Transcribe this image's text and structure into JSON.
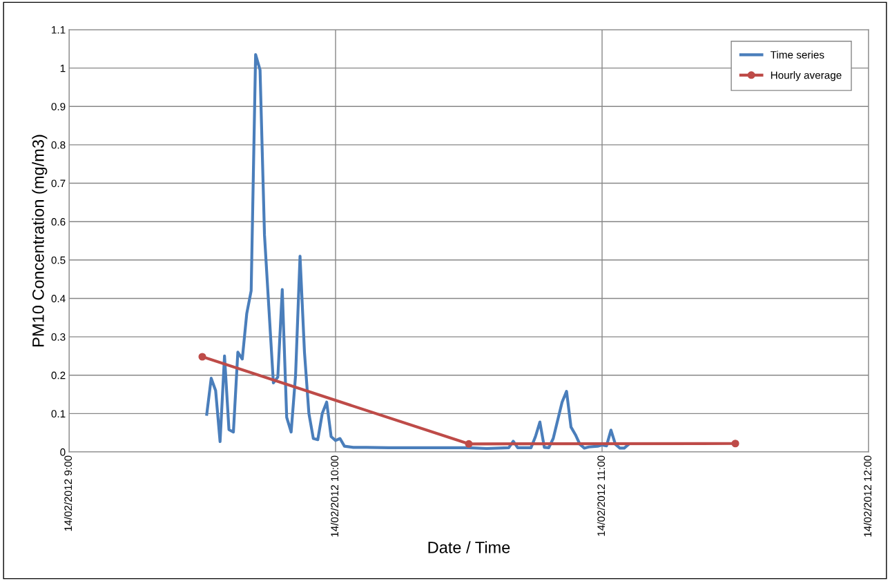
{
  "chart_data": {
    "type": "line",
    "xlabel": "Date / Time",
    "ylabel": "PM10 Concentration (mg/m3)",
    "xlim": [
      "2012-02-14T09:00",
      "2012-02-14T12:00"
    ],
    "xticks": [
      {
        "value": "2012-02-14T09:00",
        "label": "14/02/2012 9:00"
      },
      {
        "value": "2012-02-14T10:00",
        "label": "14/02/2012 10:00"
      },
      {
        "value": "2012-02-14T11:00",
        "label": "14/02/2012 11:00"
      },
      {
        "value": "2012-02-14T12:00",
        "label": "14/02/2012 12:00"
      }
    ],
    "ylim": [
      0,
      1.1
    ],
    "yticks": [
      0,
      0.1,
      0.2,
      0.3,
      0.4,
      0.5,
      0.6,
      0.7,
      0.8,
      0.9,
      1,
      1.1
    ],
    "grid": true,
    "legend": "top right",
    "series": [
      {
        "name": "Time series",
        "color": "#4a7ebb",
        "marker": "none",
        "x": [
          "2012-02-14T09:31",
          "2012-02-14T09:32",
          "2012-02-14T09:33",
          "2012-02-14T09:34",
          "2012-02-14T09:35",
          "2012-02-14T09:36",
          "2012-02-14T09:37",
          "2012-02-14T09:38",
          "2012-02-14T09:39",
          "2012-02-14T09:40",
          "2012-02-14T09:41",
          "2012-02-14T09:42",
          "2012-02-14T09:43",
          "2012-02-14T09:44",
          "2012-02-14T09:46",
          "2012-02-14T09:47",
          "2012-02-14T09:48",
          "2012-02-14T09:49",
          "2012-02-14T09:50",
          "2012-02-14T09:51",
          "2012-02-14T09:52",
          "2012-02-14T09:53",
          "2012-02-14T09:54",
          "2012-02-14T09:55",
          "2012-02-14T09:56",
          "2012-02-14T09:57",
          "2012-02-14T09:58",
          "2012-02-14T09:59",
          "2012-02-14T10:00",
          "2012-02-14T10:01",
          "2012-02-14T10:02",
          "2012-02-14T10:04",
          "2012-02-14T10:07",
          "2012-02-14T10:12",
          "2012-02-14T10:18",
          "2012-02-14T10:24",
          "2012-02-14T10:30",
          "2012-02-14T10:34",
          "2012-02-14T10:39",
          "2012-02-14T10:40",
          "2012-02-14T10:41",
          "2012-02-14T10:44",
          "2012-02-14T10:45",
          "2012-02-14T10:46",
          "2012-02-14T10:47",
          "2012-02-14T10:48",
          "2012-02-14T10:49",
          "2012-02-14T10:51",
          "2012-02-14T10:52",
          "2012-02-14T10:53",
          "2012-02-14T10:54",
          "2012-02-14T10:55",
          "2012-02-14T10:56",
          "2012-02-14T10:57",
          "2012-02-14T10:59",
          "2012-02-14T11:00",
          "2012-02-14T11:01",
          "2012-02-14T11:02",
          "2012-02-14T11:03",
          "2012-02-14T11:04",
          "2012-02-14T11:05",
          "2012-02-14T11:06"
        ],
        "values": [
          0.098,
          0.192,
          0.16,
          0.027,
          0.25,
          0.058,
          0.052,
          0.26,
          0.242,
          0.36,
          0.42,
          1.035,
          0.995,
          0.565,
          0.18,
          0.195,
          0.423,
          0.09,
          0.052,
          0.2,
          0.51,
          0.26,
          0.1,
          0.035,
          0.032,
          0.1,
          0.13,
          0.04,
          0.03,
          0.035,
          0.015,
          0.012,
          0.012,
          0.011,
          0.011,
          0.011,
          0.011,
          0.009,
          0.011,
          0.028,
          0.011,
          0.011,
          0.04,
          0.078,
          0.012,
          0.011,
          0.035,
          0.13,
          0.158,
          0.065,
          0.045,
          0.02,
          0.01,
          0.013,
          0.015,
          0.018,
          0.016,
          0.057,
          0.02,
          0.01,
          0.01,
          0.02
        ]
      },
      {
        "name": "Hourly average",
        "color": "#be4b48",
        "marker": "circle",
        "x": [
          "2012-02-14T09:30",
          "2012-02-14T10:30",
          "2012-02-14T11:30"
        ],
        "values": [
          0.248,
          0.021,
          0.022
        ]
      }
    ]
  }
}
